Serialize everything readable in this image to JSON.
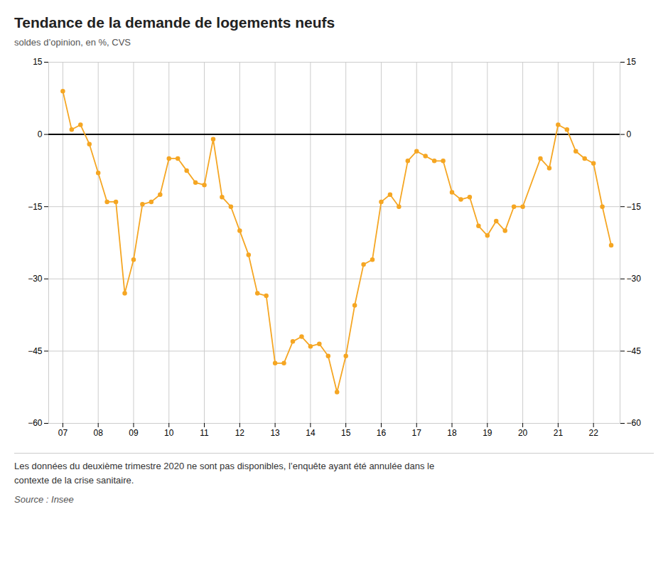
{
  "chart_data": {
    "type": "line",
    "title": "Tendance de la demande de logements neufs",
    "subtitle": "soldes d’opinion, en %, CVS",
    "footnote": "Les données du deuxième trimestre 2020 ne sont pas disponibles, l’enquête ayant été annulée dans le\ncontexte de la crise sanitaire.",
    "source": "Source : Insee",
    "x": [
      2007.0,
      2007.25,
      2007.5,
      2007.75,
      2008.0,
      2008.25,
      2008.5,
      2008.75,
      2009.0,
      2009.25,
      2009.5,
      2009.75,
      2010.0,
      2010.25,
      2010.5,
      2010.75,
      2011.0,
      2011.25,
      2011.5,
      2011.75,
      2012.0,
      2012.25,
      2012.5,
      2012.75,
      2013.0,
      2013.25,
      2013.5,
      2013.75,
      2014.0,
      2014.25,
      2014.5,
      2014.75,
      2015.0,
      2015.25,
      2015.5,
      2015.75,
      2016.0,
      2016.25,
      2016.5,
      2016.75,
      2017.0,
      2017.25,
      2017.5,
      2017.75,
      2018.0,
      2018.25,
      2018.5,
      2018.75,
      2019.0,
      2019.25,
      2019.5,
      2019.75,
      2020.0,
      2020.5,
      2020.75,
      2021.0,
      2021.25,
      2021.5,
      2021.75,
      2022.0,
      2022.25,
      2022.5
    ],
    "values": [
      9.0,
      1.0,
      2.0,
      -2.0,
      -8.0,
      -14.0,
      -14.0,
      -33.0,
      -26.0,
      -14.5,
      -14.0,
      -12.5,
      -5.0,
      -5.0,
      -7.5,
      -10.0,
      -10.5,
      -1.0,
      -13.0,
      -15.0,
      -20.0,
      -25.0,
      -33.0,
      -33.5,
      -47.5,
      -47.5,
      -43.0,
      -42.0,
      -44.0,
      -43.5,
      -46.0,
      -53.5,
      -46.0,
      -35.5,
      -27.0,
      -26.0,
      -14.0,
      -12.5,
      -15.0,
      -5.5,
      -3.5,
      -4.5,
      -5.5,
      -5.5,
      -12.0,
      -13.5,
      -13.0,
      -19.0,
      -21.0,
      -18.0,
      -20.0,
      -15.0,
      -15.0,
      -5.0,
      -7.0,
      2.0,
      1.0,
      -3.5,
      -5.0,
      -6.0,
      -15.0,
      -23.0
    ],
    "color": "#F5A623",
    "marker": "circle",
    "xlim": [
      2006.6,
      2022.75
    ],
    "xticks": [
      {
        "value": 2007,
        "label": "07"
      },
      {
        "value": 2008,
        "label": "08"
      },
      {
        "value": 2009,
        "label": "09"
      },
      {
        "value": 2010,
        "label": "10"
      },
      {
        "value": 2011,
        "label": "11"
      },
      {
        "value": 2012,
        "label": "12"
      },
      {
        "value": 2013,
        "label": "13"
      },
      {
        "value": 2014,
        "label": "14"
      },
      {
        "value": 2015,
        "label": "15"
      },
      {
        "value": 2016,
        "label": "16"
      },
      {
        "value": 2017,
        "label": "17"
      },
      {
        "value": 2018,
        "label": "18"
      },
      {
        "value": 2019,
        "label": "19"
      },
      {
        "value": 2020,
        "label": "20"
      },
      {
        "value": 2021,
        "label": "21"
      },
      {
        "value": 2022,
        "label": "22"
      }
    ],
    "ylim": [
      -60,
      15
    ],
    "yticks": [
      -60,
      -45,
      -30,
      -15,
      0,
      15
    ],
    "grid": true
  }
}
